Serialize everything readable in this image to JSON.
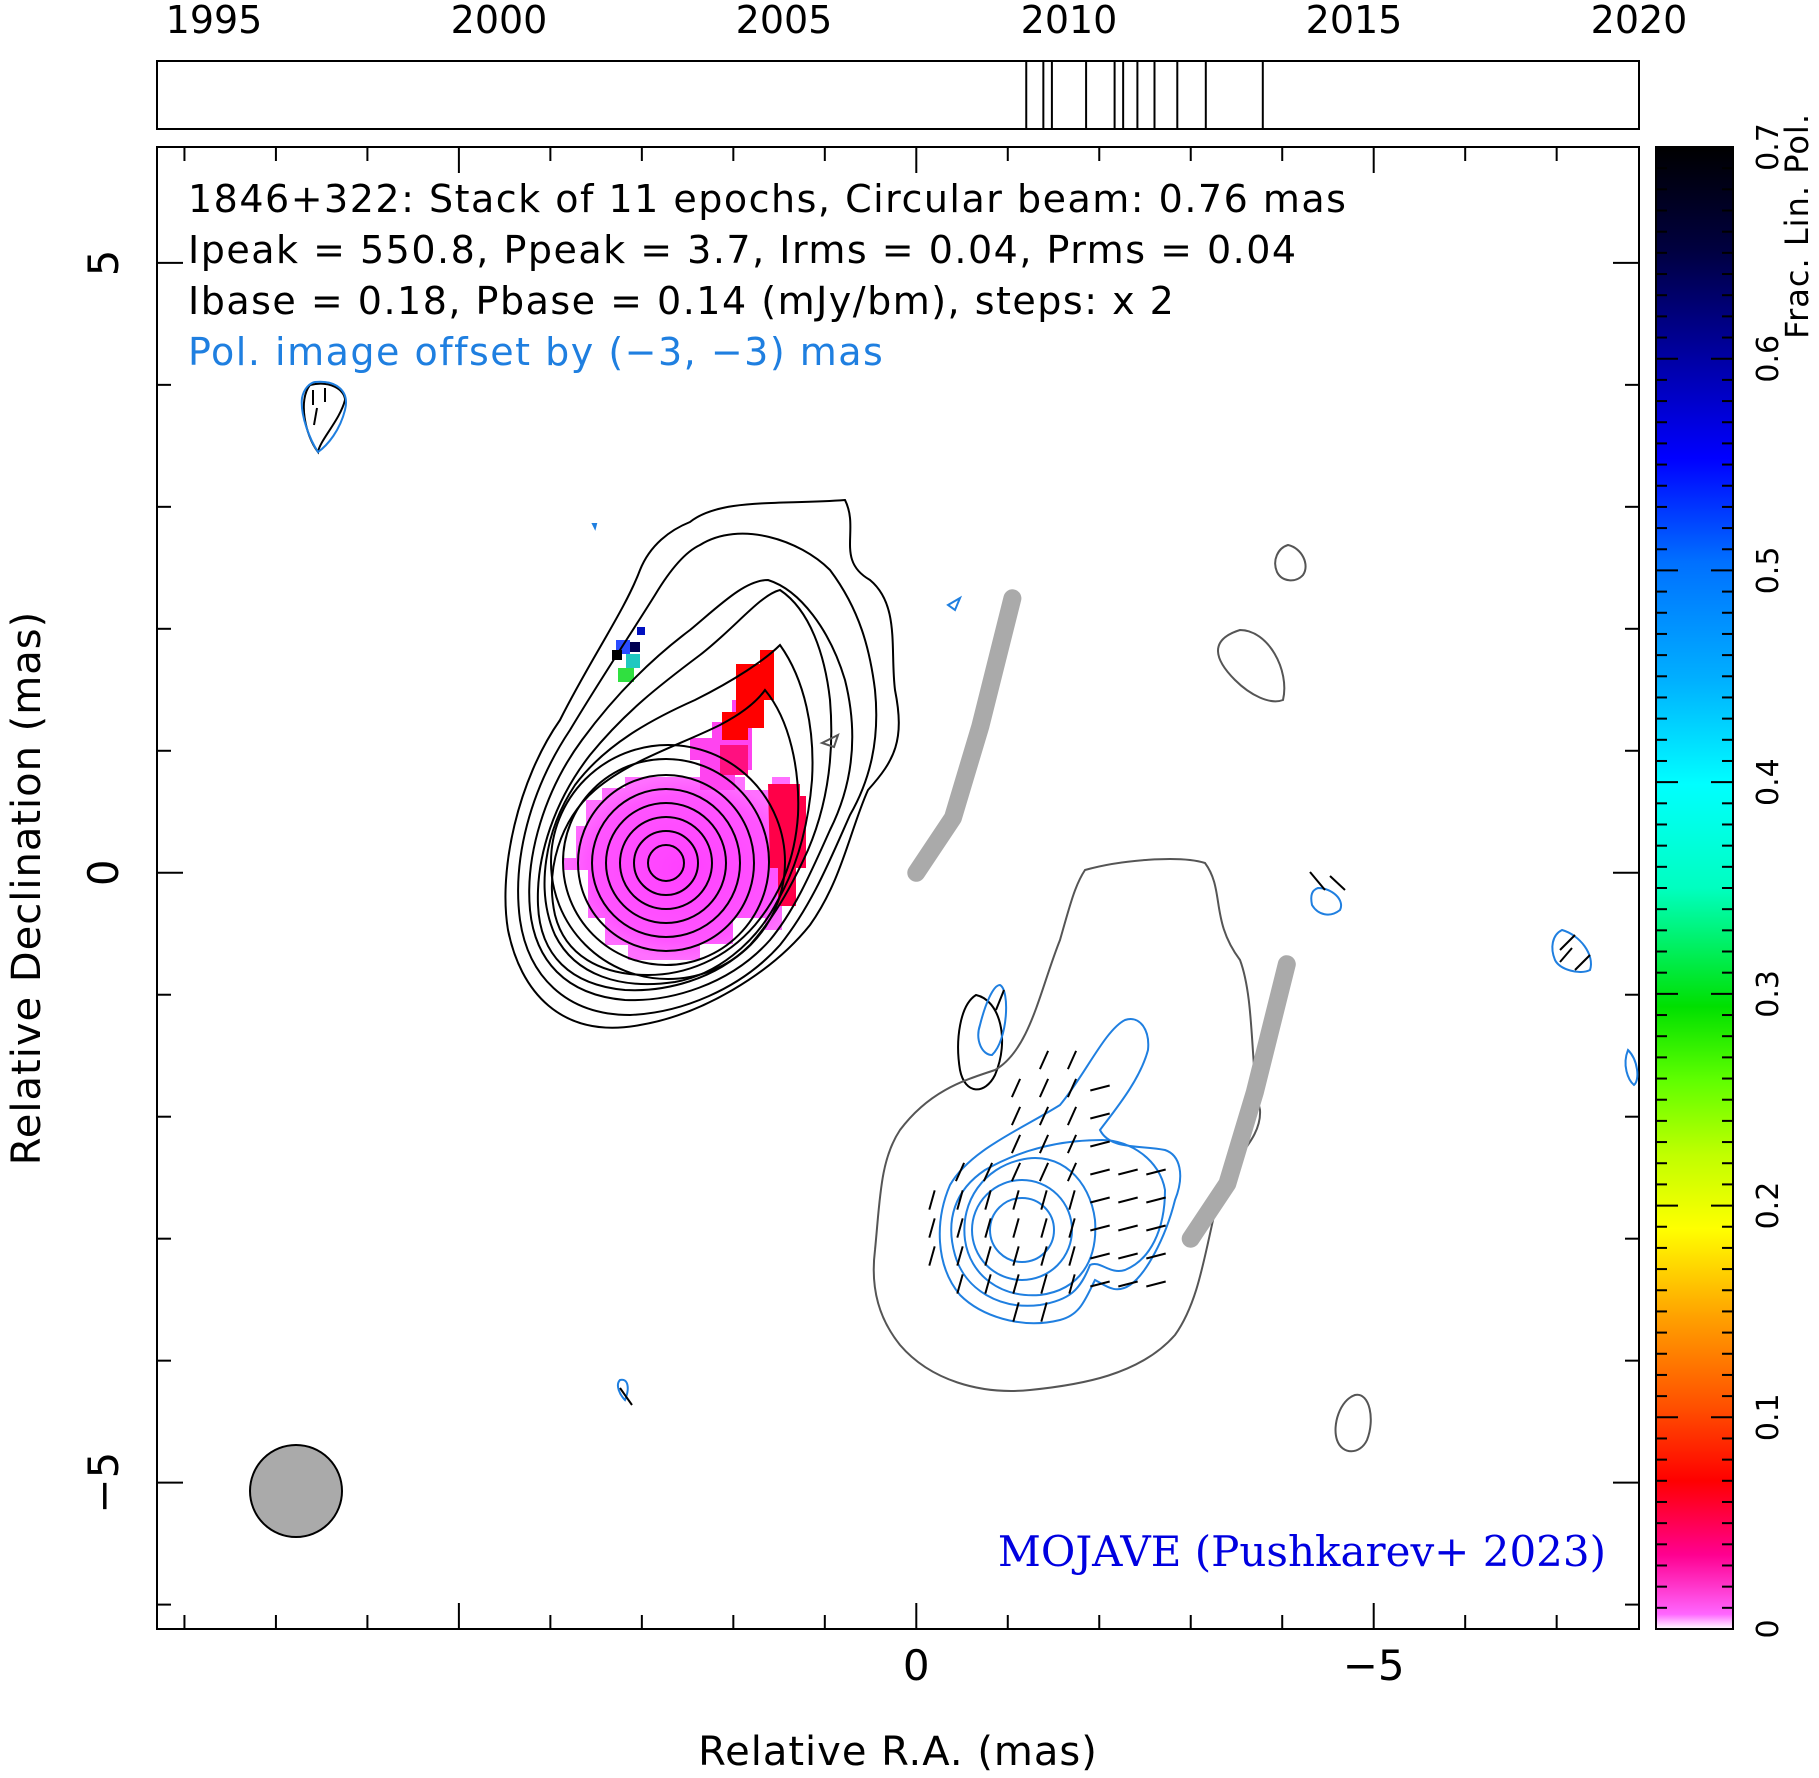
{
  "colors": {
    "axis": "#000000",
    "stokes_i_contour": "#000000",
    "stokes_i_outer_contour": "#555555",
    "pol_contour": "#1f7fe0",
    "ridge_line": "#aaaaaa",
    "beam_fill": "#aaaaaa",
    "pol_offset_text": "#1f7fe0",
    "credit_text": "#0000e0"
  },
  "chart_data": {
    "type": "heatmap",
    "annotations": [
      "1846+322: Stack of 11 epochs, Circular beam: 0.76 mas",
      "Ipeak = 550.8, Ppeak = 3.7, Irms = 0.04, Prms = 0.04",
      "Ibase = 0.18, Pbase = 0.14 (mJy/bm), steps: x 2",
      "Pol. image offset by (−3, −3) mas"
    ],
    "credit": "MOJAVE (Pushkarev+ 2023)",
    "xlabel": "Relative R.A. (mas)",
    "ylabel": "Relative Declination (mas)",
    "colorbar_label": "Frac. Lin. Pol.",
    "xlim": [
      8.3,
      -7.9
    ],
    "ylim": [
      -6.2,
      5.95
    ],
    "x_ticks": [
      0,
      -5
    ],
    "x_tick_labels": [
      "0",
      "−5"
    ],
    "y_ticks": [
      5,
      0,
      -5
    ],
    "y_tick_labels": [
      "5",
      "0",
      "−5"
    ],
    "colorbar": {
      "range": [
        0,
        0.7
      ],
      "ticks": [
        0,
        0.1,
        0.2,
        0.3,
        0.4,
        0.5,
        0.6,
        0.7
      ],
      "tick_labels": [
        "0",
        "0.1",
        "0.2",
        "0.3",
        "0.4",
        "0.5",
        "0.6",
        "0.7"
      ]
    },
    "timeline": {
      "range": [
        1994,
        2020
      ],
      "ticks": [
        1995,
        2000,
        2005,
        2010,
        2015,
        2020
      ],
      "tick_labels": [
        "1995",
        "2000",
        "2005",
        "2010",
        "2015",
        "2020"
      ],
      "epochs": [
        2009.25,
        2009.55,
        2009.7,
        2010.3,
        2010.8,
        2010.95,
        2011.2,
        2011.5,
        2011.9,
        2012.4,
        2013.4
      ]
    },
    "beam_diameter_mas": 0.76,
    "ridge_line": [
      [
        0,
        0
      ],
      [
        -0.4,
        0.45
      ],
      [
        -0.7,
        1.2
      ],
      [
        -1.05,
        2.25
      ]
    ],
    "pol_ridge_line": [
      [
        -3,
        -3
      ],
      [
        -3.4,
        -2.55
      ],
      [
        -3.7,
        -1.8
      ],
      [
        -4.05,
        -0.75
      ]
    ]
  }
}
